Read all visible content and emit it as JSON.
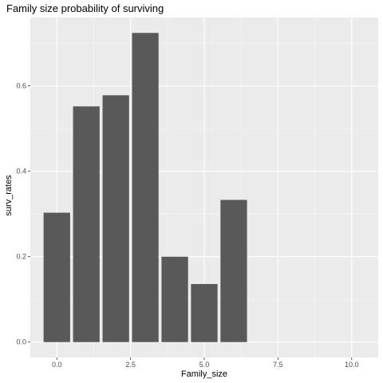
{
  "chart_data": {
    "type": "bar",
    "title": "Family size probability of surviving",
    "xlabel": "Family_size",
    "ylabel": "surv_rates",
    "x": [
      0,
      1,
      2,
      3,
      4,
      5,
      6
    ],
    "values": [
      0.303,
      0.552,
      0.578,
      0.724,
      0.2,
      0.136,
      0.333
    ],
    "xlim": [
      -0.9,
      10.9
    ],
    "ylim": [
      -0.036,
      0.76
    ],
    "xticks": [
      0,
      2.5,
      5,
      7.5,
      10
    ],
    "xtick_labels": [
      "0.0",
      "2.5",
      "5.0",
      "7.5",
      "10.0"
    ],
    "yticks": [
      0,
      0.2,
      0.4,
      0.6
    ],
    "ytick_labels": [
      "0.0",
      "0.2",
      "0.4",
      "0.6"
    ],
    "bar_width": 0.9,
    "grid": true,
    "colors": {
      "bar": "#595959",
      "panel": "#ebebeb",
      "grid_major": "#ffffff",
      "grid_minor": "#f5f5f5",
      "tick": "#333333"
    }
  }
}
